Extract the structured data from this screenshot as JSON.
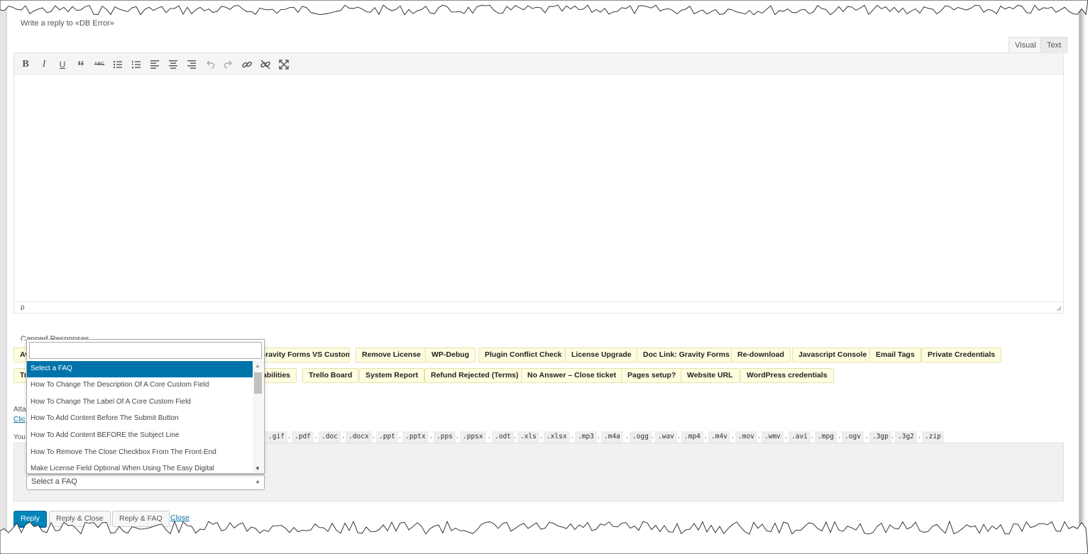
{
  "reply": {
    "title": "Write a reply to «DB Error»",
    "tabs": {
      "visual": "Visual",
      "text": "Text"
    },
    "toolbar": [
      {
        "name": "bold-icon",
        "glyph": "B"
      },
      {
        "name": "italic-icon",
        "glyph": "I"
      },
      {
        "name": "underline-icon",
        "glyph": "U"
      },
      {
        "name": "blockquote-icon",
        "glyph": "“"
      },
      {
        "name": "strikethrough-icon",
        "glyph": "ABC"
      },
      {
        "name": "bullet-list-icon",
        "glyph": ""
      },
      {
        "name": "numbered-list-icon",
        "glyph": ""
      },
      {
        "name": "align-left-icon",
        "glyph": ""
      },
      {
        "name": "align-center-icon",
        "glyph": ""
      },
      {
        "name": "align-right-icon",
        "glyph": ""
      },
      {
        "name": "undo-icon",
        "glyph": ""
      },
      {
        "name": "redo-icon",
        "glyph": ""
      },
      {
        "name": "link-icon",
        "glyph": ""
      },
      {
        "name": "unlink-icon",
        "glyph": ""
      },
      {
        "name": "fullscreen-icon",
        "glyph": ""
      }
    ],
    "status_path": "p"
  },
  "canned": {
    "label": "Canned Responses",
    "row1": [
      "Av",
      "Gravity Forms VS Custom Fields",
      "Remove License",
      "WP-Debug",
      "Plugin Conflict Check",
      "License Upgrade",
      "Doc Link: Gravity Forms",
      "Re-download",
      "Javascript Console",
      "Email Tags",
      "Private Credentials"
    ],
    "row2": [
      "Tr",
      "Capabilities",
      "Trello Board",
      "System Report",
      "Refund Rejected (Terms)",
      "No Answer – Close ticket",
      "Pages setup?",
      "Website URL",
      "WordPress credentials"
    ]
  },
  "attachments": {
    "label": "Atta",
    "link": "Clic",
    "allowed_prefix": "You",
    "extensions": [
      ".gif",
      ".pdf",
      ".doc",
      ".docx",
      ".ppt",
      ".pptx",
      ".pps",
      ".ppsx",
      ".odt",
      ".xls",
      ".xlsx",
      ".mp3",
      ".m4a",
      ".ogg",
      ".wav",
      ".mp4",
      ".m4v",
      ".mov",
      ".wmv",
      ".avi",
      ".mpg",
      ".ogv",
      ".3gp",
      ".3g2",
      ".zip"
    ]
  },
  "faq": {
    "selected_value": "Select a FAQ",
    "search_value": "",
    "options": [
      "Select a FAQ",
      "How To Change The Description Of A Core Custom Field",
      "How To Change The Label Of A Core Custom Field",
      "How To Add Content Before The Submit Button",
      "How To Add Content BEFORE the Subject Line",
      "How To Remove The Close Checkbox From The Front-End",
      "Make License Field Optional When Using The Easy Digital"
    ]
  },
  "actions": {
    "reply": "Reply",
    "reply_close": "Reply & Close",
    "reply_faq": "Reply & FAQ",
    "close": "Close"
  },
  "colors": {
    "primary": "#0085ba",
    "link": "#0073aa",
    "chip_bg": "#fffde0",
    "selected_option": "#0073aa"
  }
}
